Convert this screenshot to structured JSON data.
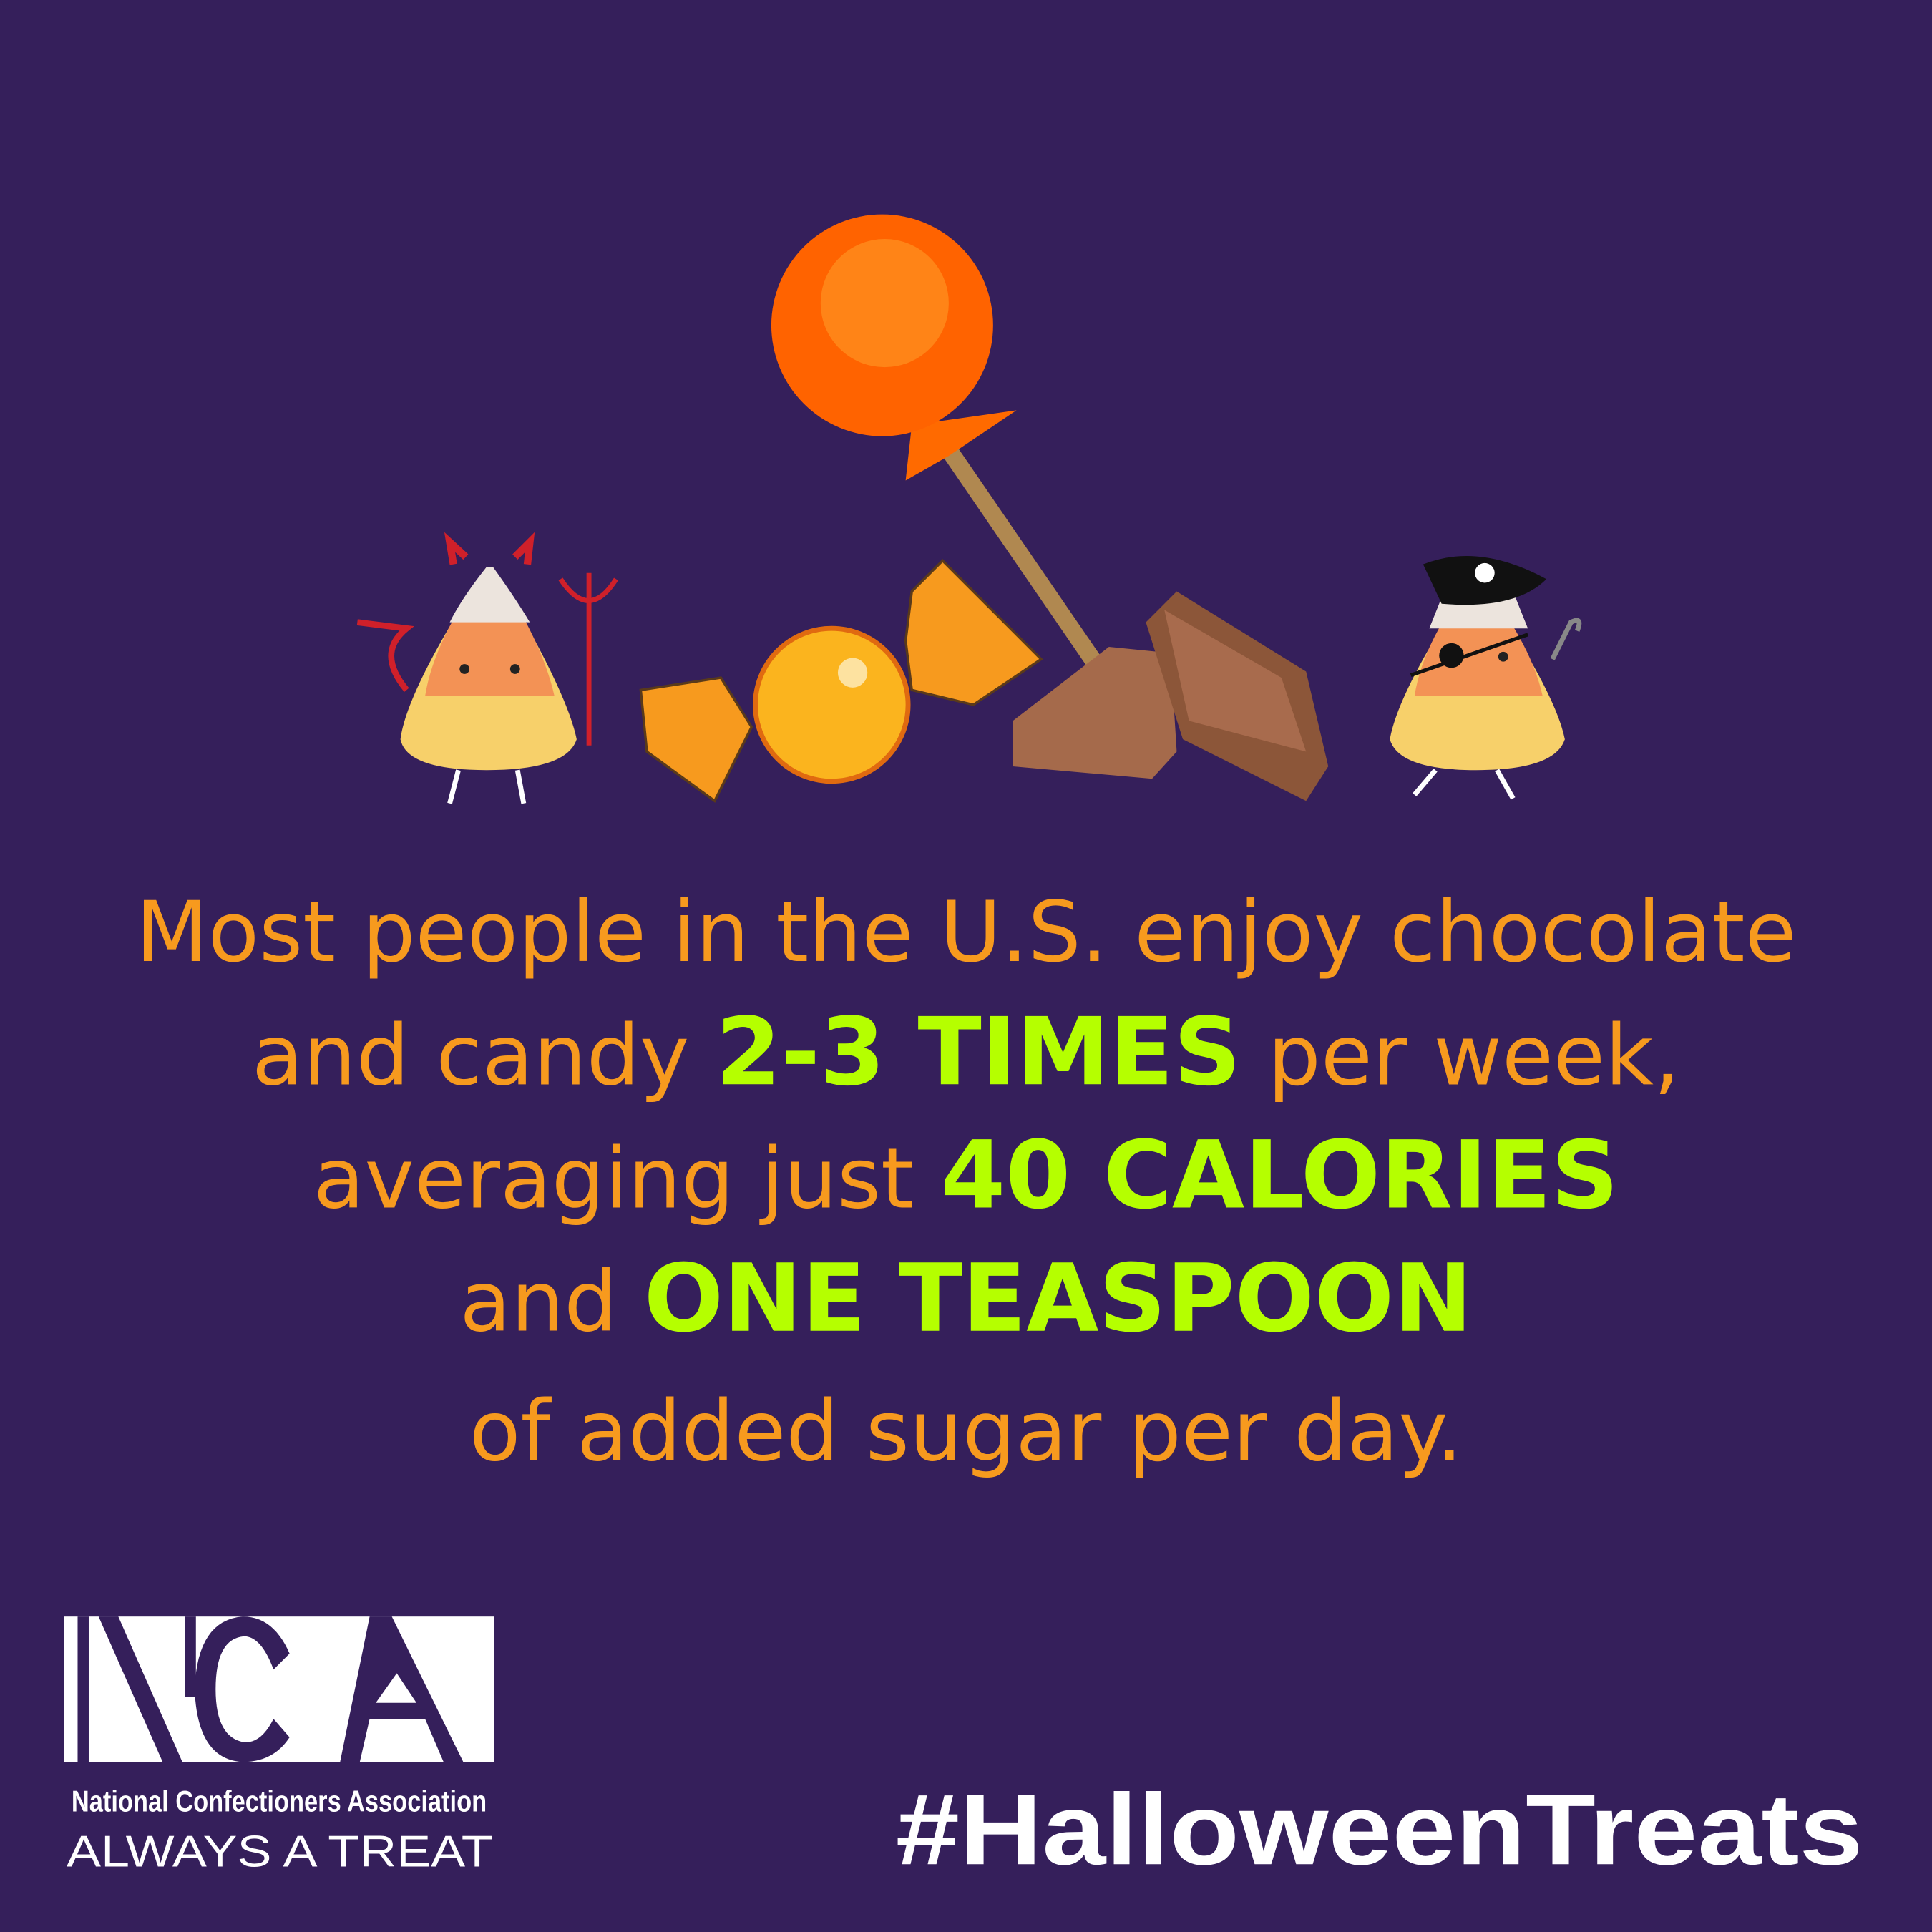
{
  "colors": {
    "background": "#351f5b",
    "text_orange": "#f79a1e",
    "text_green": "#b5ff00",
    "white": "#ffffff"
  },
  "message": {
    "line1": "Most people in the U.S. enjoy chocolate",
    "line2_a": "and candy ",
    "line2_b": "2-3 TIMES",
    "line2_c": " per week,",
    "line3_a": "averaging just ",
    "line3_b": "40 CALORIES",
    "line4_a": "and ",
    "line4_b": "ONE TEASPOON",
    "line5": "of added sugar per day."
  },
  "logo": {
    "letters": "NCA",
    "org_name": "National Confectioners Association",
    "tagline": "ALWAYS A TREAT"
  },
  "hashtag": "#HalloweenTreats",
  "illustrations": [
    "devil-candy-corn",
    "wrapped-candy",
    "orange-lollipop",
    "chocolate-pieces",
    "pirate-candy-corn"
  ]
}
